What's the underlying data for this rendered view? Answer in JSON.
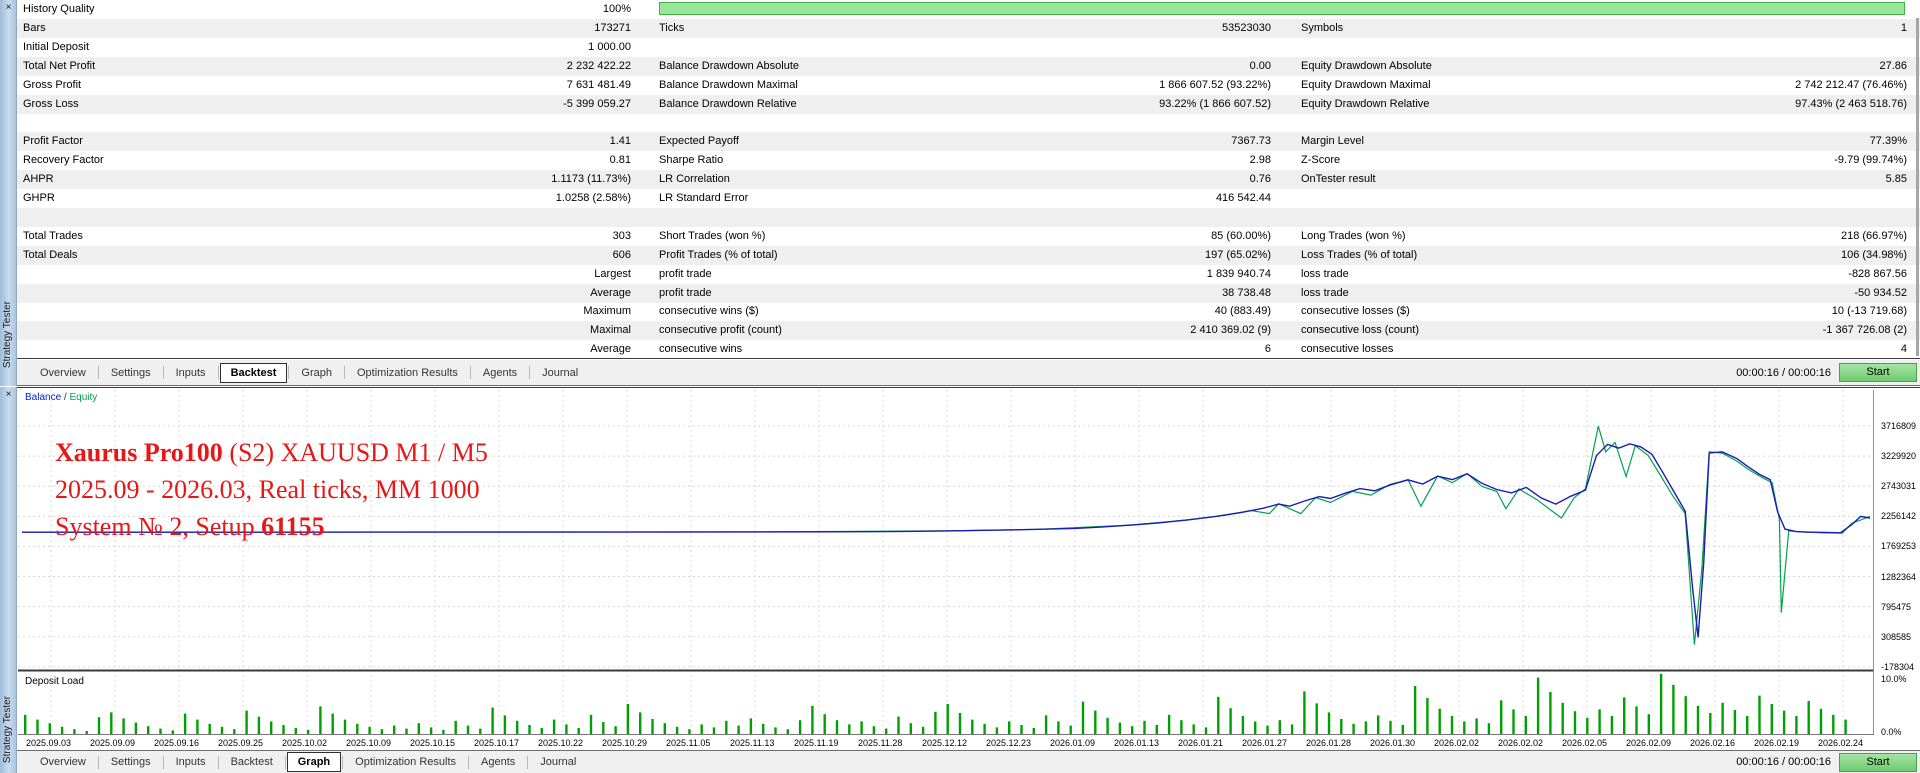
{
  "strip": {
    "title": "Strategy Tester",
    "close_glyph": "×"
  },
  "stats": {
    "history_quality_bar": {
      "percent": 100,
      "fill": "#98e698"
    },
    "rows": [
      [
        "History Quality",
        "100%",
        "",
        "",
        "",
        ""
      ],
      [
        "Bars",
        "173271",
        "Ticks",
        "53523030",
        "Symbols",
        "1"
      ],
      [
        "Initial Deposit",
        "1 000.00",
        "",
        "",
        "",
        ""
      ],
      [
        "Total Net Profit",
        "2 232 422.22",
        "Balance Drawdown Absolute",
        "0.00",
        "Equity Drawdown Absolute",
        "27.86"
      ],
      [
        "Gross Profit",
        "7 631 481.49",
        "Balance Drawdown Maximal",
        "1 866 607.52 (93.22%)",
        "Equity Drawdown Maximal",
        "2 742 212.47 (76.46%)"
      ],
      [
        "Gross Loss",
        "-5 399 059.27",
        "Balance Drawdown Relative",
        "93.22% (1 866 607.52)",
        "Equity Drawdown Relative",
        "97.43% (2 463 518.76)"
      ],
      [
        "",
        "",
        "",
        "",
        "",
        ""
      ],
      [
        "Profit Factor",
        "1.41",
        "Expected Payoff",
        "7367.73",
        "Margin Level",
        "77.39%"
      ],
      [
        "Recovery Factor",
        "0.81",
        "Sharpe Ratio",
        "2.98",
        "Z-Score",
        "-9.79 (99.74%)"
      ],
      [
        "AHPR",
        "1.1173 (11.73%)",
        "LR Correlation",
        "0.76",
        "OnTester result",
        "5.85"
      ],
      [
        "GHPR",
        "1.0258 (2.58%)",
        "LR Standard Error",
        "416 542.44",
        "",
        ""
      ],
      [
        "",
        "",
        "",
        "",
        "",
        ""
      ],
      [
        "Total Trades",
        "303",
        "Short Trades (won %)",
        "85 (60.00%)",
        "Long Trades (won %)",
        "218 (66.97%)"
      ],
      [
        "Total Deals",
        "606",
        "Profit Trades (% of total)",
        "197 (65.02%)",
        "Loss Trades (% of total)",
        "106 (34.98%)"
      ],
      [
        "",
        "Largest",
        "profit trade",
        "1 839 940.74",
        "loss trade",
        "-828 867.56"
      ],
      [
        "",
        "Average",
        "profit trade",
        "38 738.48",
        "loss trade",
        "-50 934.52"
      ],
      [
        "",
        "Maximum",
        "consecutive wins ($)",
        "40 (883.49)",
        "consecutive losses ($)",
        "10 (-13 719.68)"
      ],
      [
        "",
        "Maximal",
        "consecutive profit (count)",
        "2 410 369.02 (9)",
        "consecutive loss (count)",
        "-1 367 726.08 (2)"
      ],
      [
        "",
        "Average",
        "consecutive wins",
        "6",
        "consecutive losses",
        "4"
      ]
    ]
  },
  "tabs": {
    "items": [
      "Overview",
      "Settings",
      "Inputs",
      "Backtest",
      "Graph",
      "Optimization Results",
      "Agents",
      "Journal"
    ],
    "active_top": "Backtest",
    "active_bottom": "Graph",
    "timer": "00:00:16 / 00:00:16",
    "start_label": "Start"
  },
  "graph": {
    "legend": {
      "balance": "Balance",
      "separator": " / ",
      "equity": "Equity"
    },
    "annotation": {
      "line1_bold": "Xaurus Pro100",
      "line1_rest": " (S2) XAUUSD M1 / M5",
      "line2": "2025.09 - 2026.03, Real ticks, MM 1000",
      "line3_prefix": "System № 2, Setup ",
      "line3_bold": "61155"
    },
    "deposit_load_label": "Deposit Load",
    "colors": {
      "balance_line": "#1c1cb4",
      "equity_line": "#00a24c",
      "grid": "#d8d8d8",
      "deposit_bar": "#00a000",
      "annotation": "#e81717"
    }
  },
  "chart_data": [
    {
      "type": "line",
      "title": "Balance / Equity backtest curve",
      "y_axis_labels": [
        3716809,
        3229920,
        2743031,
        2256142,
        1769253,
        1282364,
        795475,
        308585,
        -178304
      ],
      "x_axis_labels": [
        "2025.09.03",
        "2025.09.09",
        "2025.09.16",
        "2025.09.25",
        "2025.10.02",
        "2025.10.09",
        "2025.10.15",
        "2025.10.17",
        "2025.10.22",
        "2025.10.29",
        "2025.11.05",
        "2025.11.13",
        "2025.11.19",
        "2025.11.28",
        "2025.12.12",
        "2025.12.23",
        "2026.01.09",
        "2026.01.13",
        "2026.01.21",
        "2026.01.27",
        "2026.01.28",
        "2026.01.30",
        "2026.02.02",
        "2026.02.02",
        "2026.02.05",
        "2026.02.09",
        "2026.02.16",
        "2026.02.19",
        "2026.02.24"
      ],
      "grid": "dashed",
      "legend_position": "top-left",
      "series": [
        {
          "name": "Balance",
          "points": [
            [
              0,
              2000000
            ],
            [
              0.1,
              2000500
            ],
            [
              0.2,
              2001000
            ],
            [
              0.3,
              2002000
            ],
            [
              0.4,
              2004000
            ],
            [
              0.44,
              2006000
            ],
            [
              0.47,
              2010000
            ],
            [
              0.49,
              2016000
            ],
            [
              0.51,
              2024000
            ],
            [
              0.53,
              2034000
            ],
            [
              0.55,
              2046000
            ],
            [
              0.57,
              2062000
            ],
            [
              0.585,
              2085000
            ],
            [
              0.6,
              2115000
            ],
            [
              0.615,
              2150000
            ],
            [
              0.63,
              2195000
            ],
            [
              0.645,
              2250000
            ],
            [
              0.66,
              2320000
            ],
            [
              0.672,
              2390000
            ],
            [
              0.68,
              2455000
            ],
            [
              0.686,
              2420000
            ],
            [
              0.694,
              2505000
            ],
            [
              0.702,
              2575000
            ],
            [
              0.708,
              2545000
            ],
            [
              0.716,
              2630000
            ],
            [
              0.724,
              2705000
            ],
            [
              0.732,
              2670000
            ],
            [
              0.74,
              2760000
            ],
            [
              0.75,
              2845000
            ],
            [
              0.758,
              2780000
            ],
            [
              0.766,
              2905000
            ],
            [
              0.774,
              2850000
            ],
            [
              0.782,
              2945000
            ],
            [
              0.79,
              2790000
            ],
            [
              0.798,
              2690000
            ],
            [
              0.806,
              2635000
            ],
            [
              0.814,
              2725000
            ],
            [
              0.822,
              2555000
            ],
            [
              0.83,
              2455000
            ],
            [
              0.838,
              2580000
            ],
            [
              0.846,
              2680000
            ],
            [
              0.852,
              3240000
            ],
            [
              0.858,
              3420000
            ],
            [
              0.864,
              3360000
            ],
            [
              0.87,
              3430000
            ],
            [
              0.876,
              3380000
            ],
            [
              0.882,
              3260000
            ],
            [
              0.888,
              2960000
            ],
            [
              0.894,
              2650000
            ],
            [
              0.9,
              2340000
            ],
            [
              0.904,
              1100000
            ],
            [
              0.907,
              300000
            ],
            [
              0.91,
              1500000
            ],
            [
              0.913,
              3280000
            ],
            [
              0.92,
              3300000
            ],
            [
              0.928,
              3190000
            ],
            [
              0.934,
              3060000
            ],
            [
              0.94,
              2940000
            ],
            [
              0.946,
              2850000
            ],
            [
              0.95,
              2330000
            ],
            [
              0.954,
              2050000
            ],
            [
              0.96,
              2010000
            ],
            [
              0.968,
              2000000
            ],
            [
              0.976,
              1995000
            ],
            [
              0.984,
              1990000
            ],
            [
              0.99,
              2120000
            ],
            [
              0.995,
              2256142
            ],
            [
              1,
              2230000
            ]
          ]
        },
        {
          "name": "Equity",
          "points": [
            [
              0,
              2000000
            ],
            [
              0.4,
              2004000
            ],
            [
              0.5,
              2020000
            ],
            [
              0.55,
              2046000
            ],
            [
              0.6,
              2115000
            ],
            [
              0.63,
              2195000
            ],
            [
              0.65,
              2270000
            ],
            [
              0.665,
              2350000
            ],
            [
              0.675,
              2300000
            ],
            [
              0.68,
              2460000
            ],
            [
              0.692,
              2300000
            ],
            [
              0.7,
              2560000
            ],
            [
              0.708,
              2480000
            ],
            [
              0.72,
              2660000
            ],
            [
              0.73,
              2600000
            ],
            [
              0.74,
              2770000
            ],
            [
              0.75,
              2850000
            ],
            [
              0.757,
              2420000
            ],
            [
              0.766,
              2910000
            ],
            [
              0.774,
              2800000
            ],
            [
              0.782,
              2950000
            ],
            [
              0.79,
              2740000
            ],
            [
              0.798,
              2660000
            ],
            [
              0.803,
              2380000
            ],
            [
              0.81,
              2700000
            ],
            [
              0.82,
              2520000
            ],
            [
              0.833,
              2230000
            ],
            [
              0.84,
              2560000
            ],
            [
              0.846,
              2700000
            ],
            [
              0.853,
              3716809
            ],
            [
              0.857,
              3300000
            ],
            [
              0.862,
              3450000
            ],
            [
              0.868,
              2900000
            ],
            [
              0.873,
              3400000
            ],
            [
              0.88,
              3240000
            ],
            [
              0.886,
              2950000
            ],
            [
              0.893,
              2600000
            ],
            [
              0.9,
              2300000
            ],
            [
              0.905,
              182000
            ],
            [
              0.909,
              1400000
            ],
            [
              0.913,
              3300000
            ],
            [
              0.92,
              3280000
            ],
            [
              0.928,
              3150000
            ],
            [
              0.934,
              3020000
            ],
            [
              0.94,
              2910000
            ],
            [
              0.947,
              2800000
            ],
            [
              0.951,
              2200000
            ],
            [
              0.952,
              700000
            ],
            [
              0.956,
              2020000
            ],
            [
              0.965,
              2000000
            ],
            [
              0.975,
              1990000
            ],
            [
              0.985,
              1985000
            ],
            [
              0.99,
              2140000
            ],
            [
              1,
              2256142
            ]
          ]
        }
      ],
      "value_at_chart_top": 4300000,
      "value_per_pixel": 16176
    },
    {
      "type": "bar",
      "title": "Deposit Load",
      "ylim": [
        0,
        10
      ],
      "y_axis_labels": [
        "10.0%",
        "0.0%"
      ],
      "values_percent": [
        3.2,
        2.4,
        1.8,
        1.2,
        0.8,
        0.5,
        2.8,
        3.6,
        2.6,
        1.9,
        1.3,
        0.9,
        0.6,
        3.4,
        2.4,
        1.7,
        1.2,
        0.8,
        3.9,
        2.9,
        2.1,
        1.5,
        1.0,
        0.7,
        4.6,
        3.4,
        2.4,
        1.7,
        1.2,
        0.8,
        1.4,
        0.9,
        1.8,
        1.1,
        0.7,
        2.2,
        1.4,
        0.9,
        4.4,
        3.1,
        2.2,
        1.5,
        1.0,
        2.4,
        1.6,
        1.0,
        3.2,
        2.0,
        1.3,
        5.0,
        3.6,
        2.5,
        1.8,
        1.2,
        0.8,
        1.6,
        1.1,
        2.2,
        1.4,
        2.6,
        1.7,
        1.1,
        0.8,
        2.3,
        4.7,
        3.3,
        2.3,
        1.6,
        2.1,
        1.3,
        0.9,
        2.9,
        1.8,
        1.2,
        3.7,
        5.0,
        3.5,
        2.4,
        1.7,
        1.1,
        2.1,
        1.5,
        1.0,
        3.1,
        2.1,
        1.4,
        5.4,
        3.9,
        2.7,
        1.9,
        1.3,
        2.2,
        1.5,
        3.2,
        2.3,
        1.6,
        1.1,
        6.2,
        4.3,
        3.0,
        2.1,
        1.4,
        2.3,
        1.6,
        7.1,
        5.1,
        3.6,
        2.5,
        1.7,
        2.1,
        3.1,
        2.2,
        1.5,
        8.0,
        6.0,
        4.2,
        3.0,
        2.1,
        2.6,
        1.8,
        5.6,
        4.1,
        3.0,
        9.4,
        7.0,
        5.2,
        3.8,
        2.7,
        4.1,
        3.0,
        6.1,
        4.6,
        3.3,
        10.0,
        8.2,
        6.3,
        4.7,
        3.5,
        5.2,
        4.0,
        3.0,
        6.4,
        5.0,
        3.9,
        3.0,
        5.5,
        4.2,
        3.2,
        2.4
      ]
    }
  ]
}
